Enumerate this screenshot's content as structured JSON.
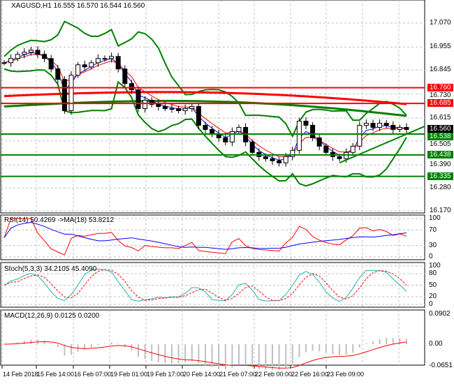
{
  "header": {
    "symbol": "XAGUSD,H1",
    "ohlc": "16.555 16.570 16.544 16.560"
  },
  "colors": {
    "bull": "#000000",
    "bear": "#000000",
    "band": "#008000",
    "red_level": "#ff0000",
    "green_level": "#008000",
    "rsi": "#ff0000",
    "rsi_ma": "#0000ff",
    "stoch_main": "#20b2aa",
    "stoch_signal": "#ff0000",
    "macd_hist": "#c0c0c0",
    "macd_signal": "#ff0000"
  },
  "chart_data": [
    {
      "type": "candlestick",
      "title": "XAGUSD,H1",
      "x_ticks": [
        "14 Feb 2018",
        "15 Feb 14:00",
        "16 Feb 07:00",
        "19 Feb 01:00",
        "19 Feb 17:00",
        "20 Feb 14:00",
        "21 Feb 07:00",
        "22 Feb 00:00",
        "22 Feb 16:00",
        "23 Feb 09:00"
      ],
      "y_ticks": [
        "17.070",
        "16.955",
        "16.845",
        "16.730",
        "16.615",
        "16.505",
        "16.390",
        "16.280",
        "16.170"
      ],
      "ylim": [
        16.17,
        17.15
      ],
      "closes": [
        16.88,
        16.9,
        16.92,
        16.93,
        16.94,
        16.92,
        16.9,
        16.85,
        16.8,
        16.65,
        16.82,
        16.87,
        16.86,
        16.88,
        16.9,
        16.9,
        16.91,
        16.85,
        16.78,
        16.75,
        16.66,
        16.7,
        16.68,
        16.67,
        16.66,
        16.66,
        16.65,
        16.66,
        16.67,
        16.58,
        16.56,
        16.54,
        16.52,
        16.5,
        16.55,
        16.57,
        16.5,
        16.45,
        16.43,
        16.42,
        16.41,
        16.4,
        16.43,
        16.46,
        16.6,
        16.58,
        16.52,
        16.48,
        16.45,
        16.43,
        16.42,
        16.45,
        16.48,
        16.58,
        16.59,
        16.57,
        16.59,
        16.58,
        16.56,
        16.57,
        16.56
      ],
      "levels": [
        {
          "value": 16.76,
          "label": "16.760",
          "color": "red"
        },
        {
          "value": 16.685,
          "label": "16.685",
          "color": "red"
        },
        {
          "value": 16.538,
          "label": "16.538",
          "color": "green"
        },
        {
          "value": 16.438,
          "label": "16.438",
          "color": "green"
        },
        {
          "value": 16.335,
          "label": "16.335",
          "color": "green"
        }
      ],
      "current_price": "16.560"
    },
    {
      "type": "line",
      "title": "RSI(14) 50.4269  ->MA(18) 53.8212",
      "y_ticks": [
        "100",
        "70",
        "30",
        "0"
      ],
      "ylim": [
        0,
        100
      ]
    },
    {
      "type": "line",
      "title": "Stoch(5,3,3) 34.2105 45.4090",
      "y_ticks": [
        "100",
        "80",
        "50",
        "20",
        "0"
      ],
      "ylim": [
        0,
        100
      ]
    },
    {
      "type": "bar",
      "title": "MACD(12,26,9) 0.0125 0.0200",
      "y_ticks": [
        "0.0902",
        "0.00",
        "-0.0651"
      ],
      "ylim": [
        -0.0651,
        0.0902
      ]
    }
  ]
}
